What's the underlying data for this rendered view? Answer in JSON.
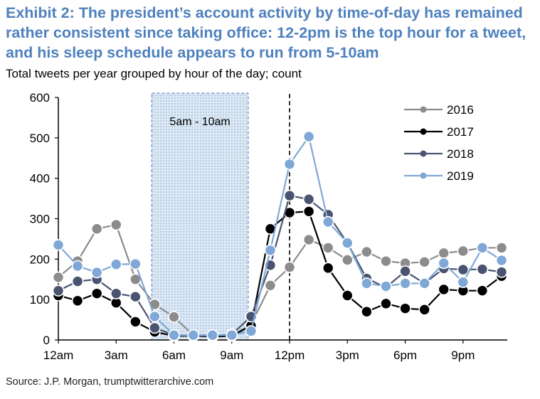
{
  "header": {
    "title": "Exhibit 2: The president’s account activity by time-of-day has remained rather consistent since taking office: 12-2pm is the top hour for a tweet, and his sleep schedule appears to run from 5-10am",
    "subtitle": "Total tweets per year grouped by hour of the day; count"
  },
  "footer": {
    "source": "Source: J.P. Morgan, trumptwitterarchive.com"
  },
  "chart_data": {
    "type": "line",
    "title": "Exhibit 2: The president’s account activity by time-of-day has remained rather consistent since taking office: 12-2pm is the top hour for a tweet, and his sleep schedule appears to run from 5-10am",
    "subtitle": "Total tweets per year grouped by hour of the day; count",
    "xlabel": "",
    "ylabel": "",
    "ylim": [
      0,
      600
    ],
    "yticks": [
      0,
      100,
      200,
      300,
      400,
      500,
      600
    ],
    "x": [
      0,
      1,
      2,
      3,
      4,
      5,
      6,
      7,
      8,
      9,
      10,
      11,
      12,
      13,
      14,
      15,
      16,
      17,
      18,
      19,
      20,
      21,
      22,
      23
    ],
    "xtick_positions": [
      0,
      3,
      6,
      9,
      12,
      15,
      18,
      21
    ],
    "xtick_labels": [
      "12am",
      "3am",
      "6am",
      "9am",
      "12pm",
      "3pm",
      "6pm",
      "9pm"
    ],
    "grid": false,
    "legend_position": "top-right",
    "shaded_region": {
      "x_from": 5,
      "x_to": 10,
      "label": "5am - 10am"
    },
    "reference_line": {
      "x": 12,
      "style": "dashed"
    },
    "series": [
      {
        "name": "2016",
        "color": "#8c8c8c",
        "values": [
          155,
          195,
          275,
          285,
          150,
          88,
          57,
          12,
          12,
          12,
          38,
          135,
          180,
          248,
          228,
          198,
          218,
          195,
          190,
          193,
          215,
          220,
          228,
          228
        ]
      },
      {
        "name": "2017",
        "color": "#000000",
        "values": [
          110,
          97,
          115,
          92,
          45,
          20,
          10,
          10,
          8,
          10,
          35,
          275,
          315,
          318,
          178,
          110,
          70,
          90,
          78,
          75,
          125,
          122,
          122,
          158
        ]
      },
      {
        "name": "2018",
        "color": "#4a5470",
        "values": [
          122,
          145,
          150,
          115,
          107,
          30,
          12,
          10,
          10,
          14,
          58,
          185,
          357,
          348,
          310,
          240,
          152,
          130,
          170,
          140,
          177,
          174,
          175,
          168
        ]
      },
      {
        "name": "2019",
        "color": "#7fa8d6",
        "values": [
          235,
          183,
          167,
          187,
          188,
          58,
          12,
          12,
          12,
          12,
          22,
          222,
          435,
          503,
          292,
          240,
          140,
          133,
          140,
          140,
          190,
          143,
          228,
          197
        ]
      }
    ]
  }
}
